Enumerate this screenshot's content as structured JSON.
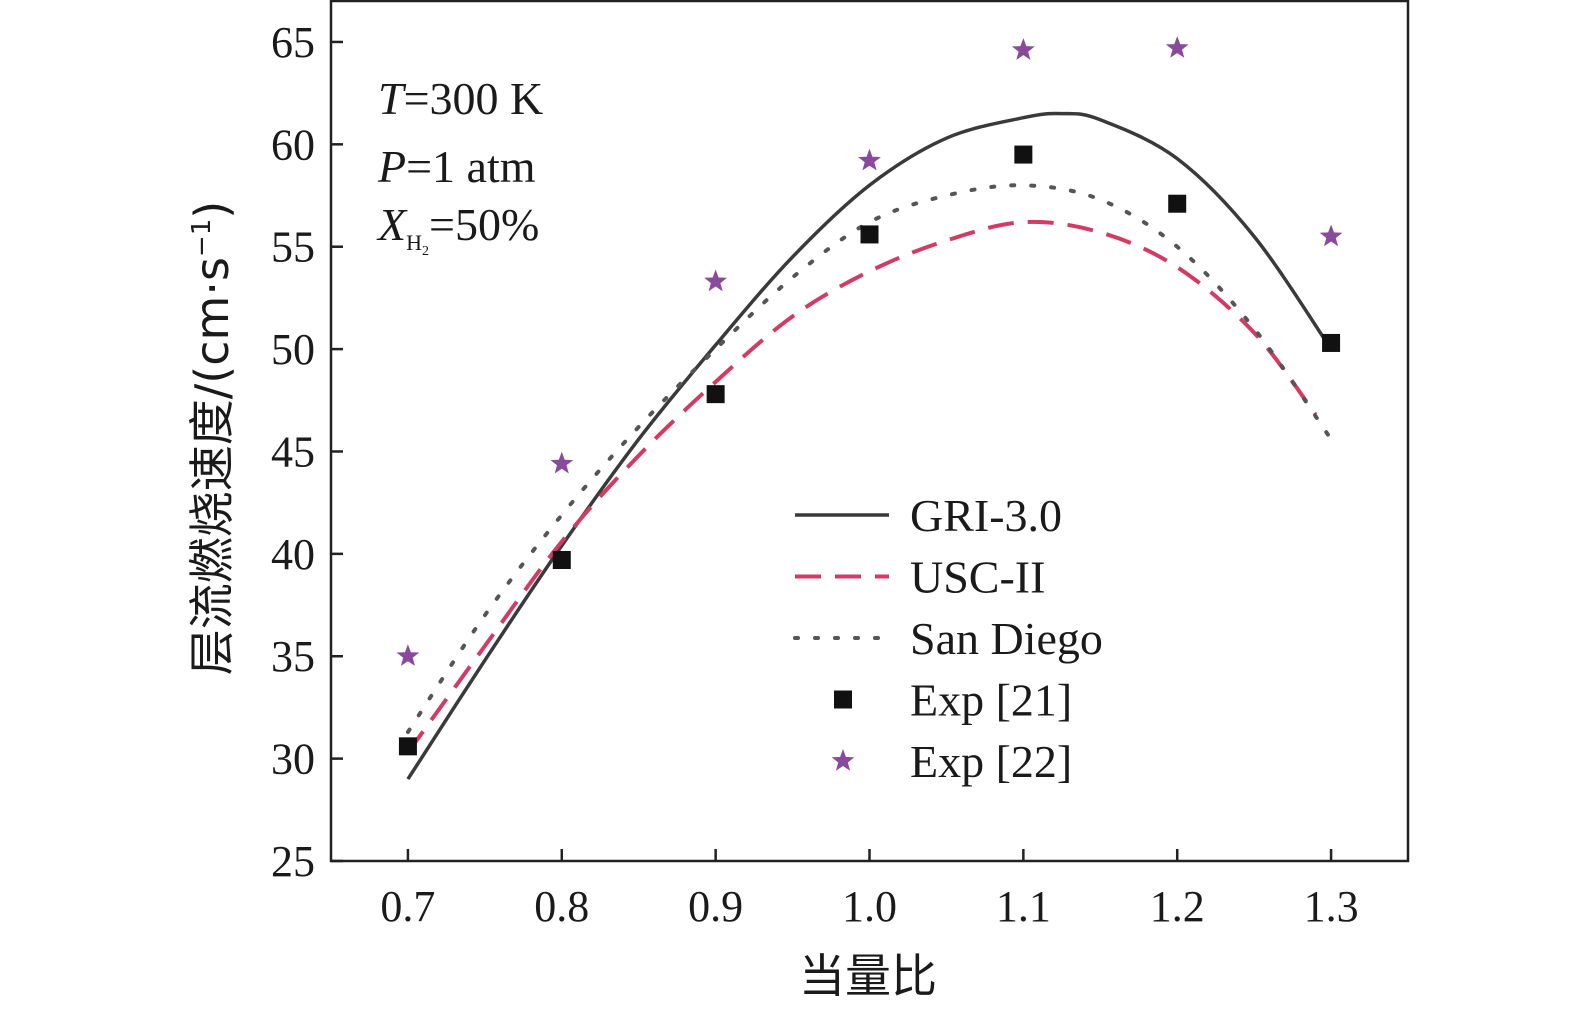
{
  "chart_data": {
    "type": "line",
    "xlabel": "当量比",
    "ylabel": "层流燃烧速度/(cm·s",
    "ylabel_unit_exponent": "−1",
    "ylabel_close": ")",
    "xlim": [
      0.65,
      1.35
    ],
    "ylim": [
      25,
      67
    ],
    "xticks": [
      "0.7",
      "0.8",
      "0.9",
      "1.0",
      "1.1",
      "1.2",
      "1.3"
    ],
    "yticks": [
      "25",
      "30",
      "35",
      "40",
      "45",
      "50",
      "55",
      "60",
      "65"
    ],
    "grid": false,
    "legend_position": "bottom-right",
    "annotations": {
      "temperature": {
        "symbol": "T",
        "value": "=300 K"
      },
      "pressure": {
        "symbol": "P",
        "value": "=1 atm"
      },
      "fraction": {
        "symbol": "X",
        "subscript": "H",
        "sub_sub": "2",
        "value": "=50%"
      }
    },
    "series": [
      {
        "name": "GRI-3.0",
        "style": "solid",
        "color": "#3a3a3a",
        "x": [
          0.7,
          0.75,
          0.8,
          0.85,
          0.9,
          0.95,
          1.0,
          1.05,
          1.1,
          1.125,
          1.15,
          1.2,
          1.25,
          1.3
        ],
        "y": [
          29.0,
          34.8,
          40.4,
          45.6,
          50.2,
          54.5,
          58.0,
          60.3,
          61.3,
          61.5,
          61.2,
          59.3,
          55.5,
          50.0
        ]
      },
      {
        "name": "USC-II",
        "style": "dashed",
        "color": "#d23c64",
        "x": [
          0.7,
          0.75,
          0.8,
          0.85,
          0.9,
          0.95,
          1.0,
          1.05,
          1.1,
          1.15,
          1.2,
          1.25,
          1.29
        ],
        "y": [
          30.3,
          35.5,
          40.6,
          44.8,
          48.4,
          51.6,
          53.8,
          55.3,
          56.2,
          55.7,
          54.0,
          50.8,
          46.8
        ]
      },
      {
        "name": "San Diego",
        "style": "dotted",
        "color": "#555555",
        "x": [
          0.7,
          0.75,
          0.8,
          0.85,
          0.9,
          0.95,
          1.0,
          1.05,
          1.1,
          1.15,
          1.2,
          1.25,
          1.3
        ],
        "y": [
          31.3,
          37.0,
          41.9,
          46.2,
          50.0,
          53.5,
          56.2,
          57.5,
          58.0,
          57.3,
          55.0,
          51.0,
          45.6
        ]
      },
      {
        "name": "Exp [21]",
        "style": "square",
        "color": "#111111",
        "x": [
          0.7,
          0.8,
          0.9,
          1.0,
          1.1,
          1.2,
          1.3
        ],
        "y": [
          30.6,
          39.7,
          47.8,
          55.6,
          59.5,
          57.1,
          50.3
        ]
      },
      {
        "name": "Exp [22]",
        "style": "star",
        "color": "#8a4a9c",
        "x": [
          0.7,
          0.8,
          0.9,
          1.0,
          1.1,
          1.2,
          1.3
        ],
        "y": [
          35.0,
          44.4,
          53.3,
          59.2,
          64.6,
          64.7,
          55.5
        ]
      }
    ]
  }
}
